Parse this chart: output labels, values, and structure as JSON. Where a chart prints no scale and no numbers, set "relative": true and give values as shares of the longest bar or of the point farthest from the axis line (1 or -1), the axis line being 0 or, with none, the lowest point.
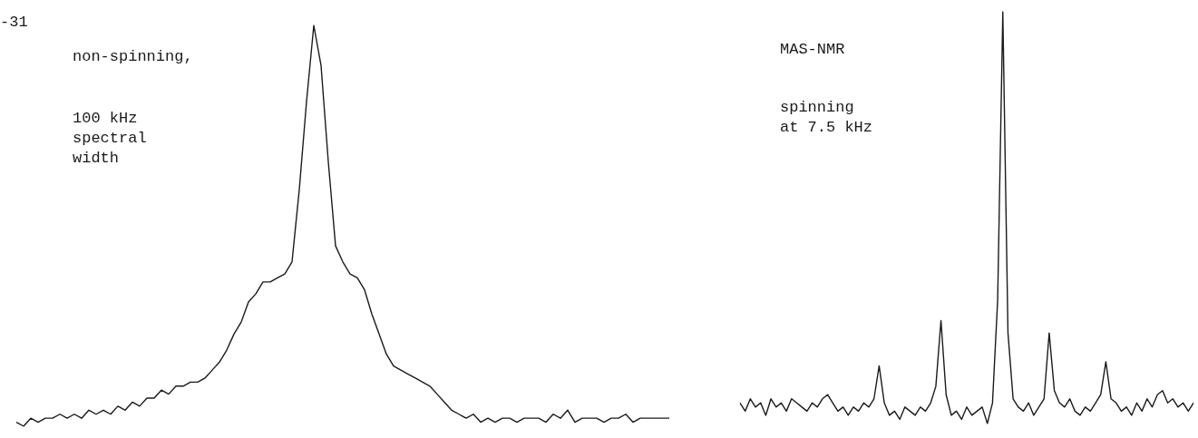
{
  "chart_data": [
    {
      "type": "line",
      "relative": true,
      "color": "#1a1a1a",
      "annotations": [
        "-31",
        "non-spinning,",
        "100 kHz\nspectral\nwidth"
      ],
      "categories": [
        null,
        null,
        null,
        null,
        null,
        null,
        null,
        null,
        null,
        null,
        null,
        null,
        null,
        null,
        null,
        null,
        null,
        null,
        null,
        null,
        null,
        null,
        null,
        null,
        null,
        null,
        null,
        null,
        null,
        null,
        null,
        null,
        null,
        null,
        null,
        null,
        null,
        null,
        null,
        null,
        null,
        null,
        null,
        null,
        null,
        null,
        null,
        null,
        null,
        null,
        null,
        null,
        null,
        null,
        null,
        null,
        null,
        null,
        null,
        null,
        null,
        null,
        null,
        null,
        null,
        null,
        null,
        null,
        null,
        null,
        null,
        null,
        null,
        null,
        null,
        null,
        null,
        null,
        null,
        null,
        null,
        null,
        null,
        null,
        null,
        null,
        null,
        null,
        null,
        null,
        null
      ],
      "values": [
        0.01,
        0,
        0.02,
        0.01,
        0.02,
        0.02,
        0.03,
        0.02,
        0.03,
        0.02,
        0.04,
        0.03,
        0.04,
        0.03,
        0.05,
        0.04,
        0.06,
        0.05,
        0.07,
        0.07,
        0.09,
        0.08,
        0.1,
        0.1,
        0.11,
        0.11,
        0.12,
        0.14,
        0.16,
        0.19,
        0.23,
        0.26,
        0.31,
        0.33,
        0.36,
        0.36,
        0.37,
        0.38,
        0.41,
        0.59,
        0.81,
        1,
        0.9,
        0.66,
        0.45,
        0.41,
        0.38,
        0.37,
        0.34,
        0.28,
        0.23,
        0.18,
        0.15,
        0.14,
        0.13,
        0.12,
        0.11,
        0.1,
        0.08,
        0.06,
        0.04,
        0.03,
        0.02,
        0.03,
        0.01,
        0.02,
        0.01,
        0.02,
        0.02,
        0.01,
        0.02,
        0.02,
        0.02,
        0.01,
        0.03,
        0.02,
        0.04,
        0.01,
        0.02,
        0.02,
        0.02,
        0.01,
        0.02,
        0.02,
        0.03,
        0.01,
        0.02,
        0.02,
        0.02,
        0.02,
        0.02
      ]
    },
    {
      "type": "line",
      "relative": true,
      "color": "#1a1a1a",
      "annotations": [
        "MAS-NMR",
        "spinning\nat 7.5 kHz"
      ],
      "categories": [
        null,
        null,
        null,
        null,
        null,
        null,
        null,
        null,
        null,
        null,
        null,
        null,
        null,
        null,
        null,
        null,
        null,
        null,
        null,
        null,
        null,
        null,
        null,
        null,
        null,
        null,
        null,
        null,
        null,
        null,
        null,
        null,
        null,
        null,
        null,
        null,
        null,
        null,
        null,
        null,
        null,
        null,
        null,
        null,
        null,
        null,
        null,
        null,
        null,
        null,
        null,
        null,
        null,
        null,
        null,
        null,
        null,
        null,
        null,
        null,
        null,
        null,
        null,
        null,
        null,
        null,
        null,
        null,
        null,
        null,
        null,
        null,
        null,
        null,
        null,
        null,
        null,
        null,
        null,
        null,
        null,
        null,
        null,
        null,
        null,
        null,
        null,
        null,
        null
      ],
      "values": [
        0.05,
        0.03,
        0.06,
        0.04,
        0.05,
        0.02,
        0.06,
        0.04,
        0.05,
        0.03,
        0.06,
        0.05,
        0.04,
        0.03,
        0.05,
        0.04,
        0.06,
        0.07,
        0.05,
        0.03,
        0.04,
        0.02,
        0.04,
        0.03,
        0.05,
        0.04,
        0.06,
        0.14,
        0.05,
        0.02,
        0.03,
        0.01,
        0.04,
        0.03,
        0.02,
        0.04,
        0.03,
        0.05,
        0.09,
        0.25,
        0.07,
        0.02,
        0.03,
        0.01,
        0.04,
        0.02,
        0.03,
        0.04,
        0,
        0.05,
        0.3,
        1,
        0.22,
        0.06,
        0.04,
        0.03,
        0.05,
        0.02,
        0.04,
        0.06,
        0.22,
        0.08,
        0.05,
        0.04,
        0.06,
        0.03,
        0.02,
        0.04,
        0.03,
        0.05,
        0.07,
        0.15,
        0.06,
        0.05,
        0.03,
        0.04,
        0.02,
        0.05,
        0.03,
        0.06,
        0.04,
        0.07,
        0.08,
        0.05,
        0.06,
        0.04,
        0.05,
        0.03,
        0.05
      ]
    }
  ]
}
